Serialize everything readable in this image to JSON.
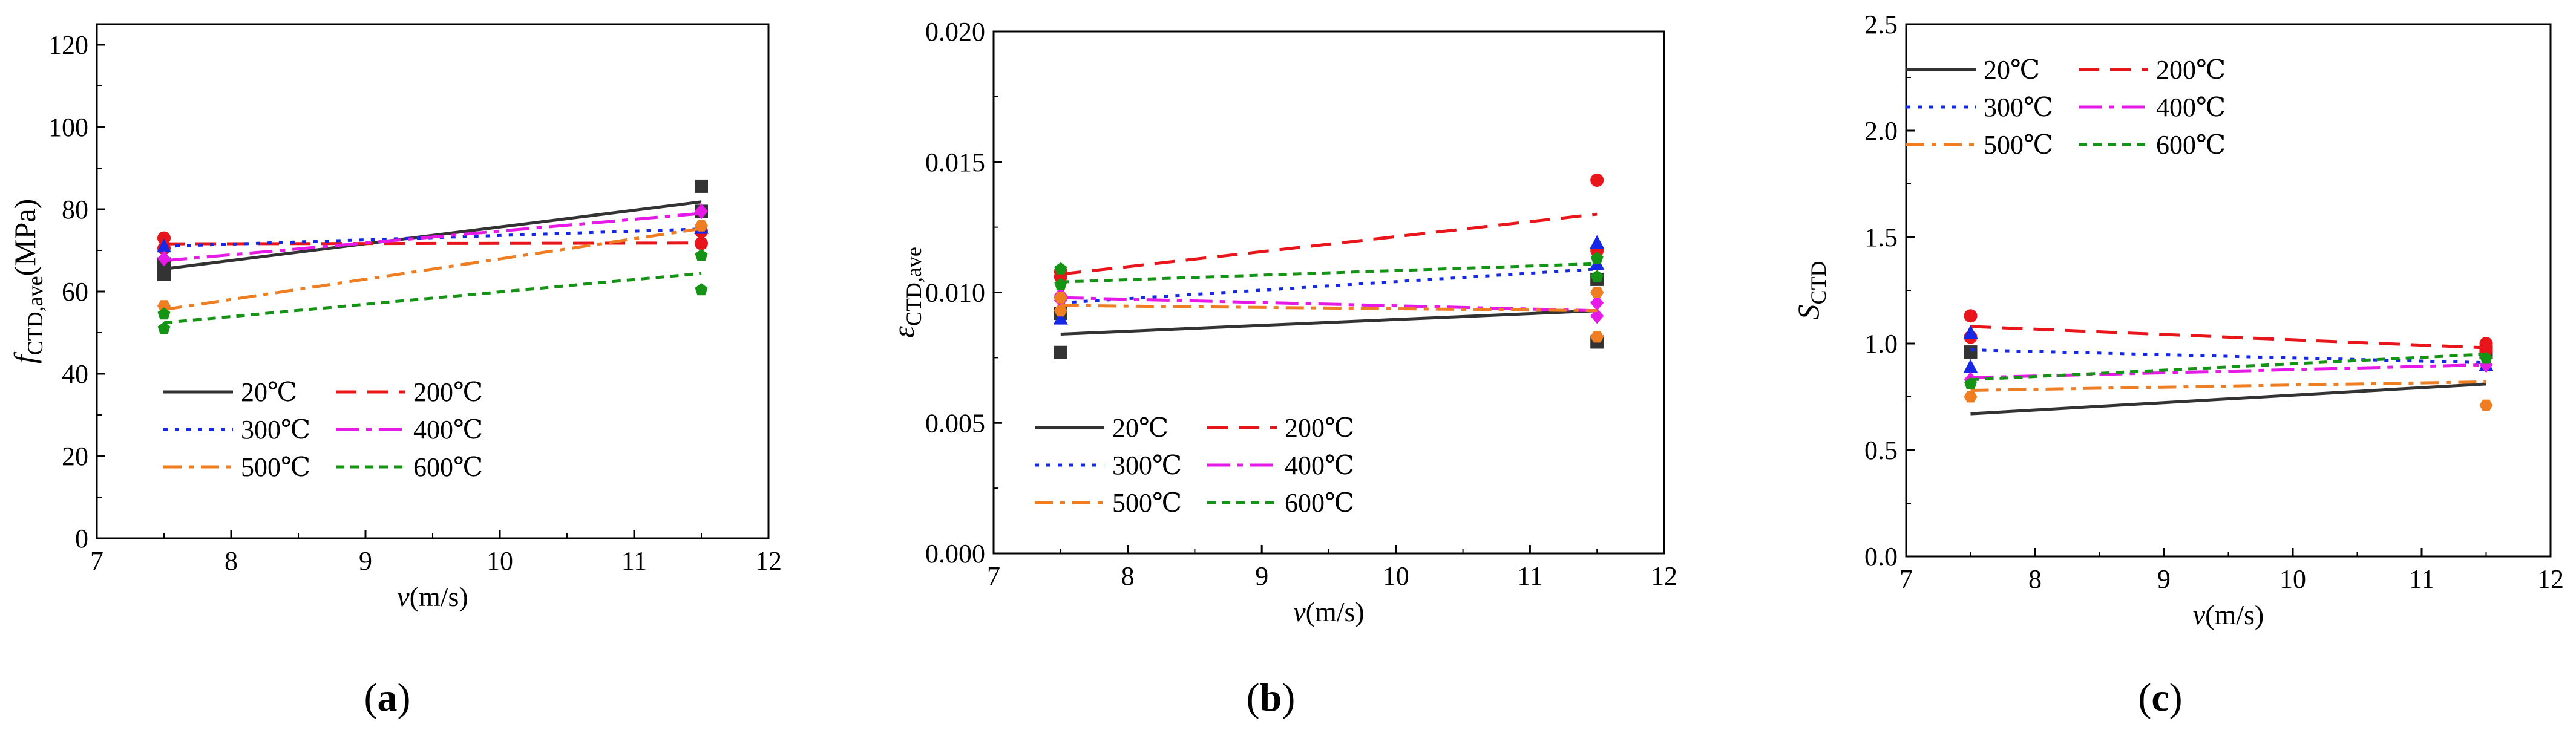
{
  "figure": {
    "panel_labels": [
      "(a)",
      "(b)",
      "(c)"
    ],
    "series_names": [
      "20℃",
      "200℃",
      "300℃",
      "400℃",
      "500℃",
      "600℃"
    ],
    "series_colors": [
      "#333333",
      "#e8151b",
      "#1428e6",
      "#e61ae6",
      "#ef7d22",
      "#159315"
    ]
  },
  "chart_data": [
    {
      "type": "line",
      "panel": "(a)",
      "title": "",
      "xlabel": "v(m/s)",
      "ylabel": "f_CTD,ave(MPa)",
      "ylabel_main": "f",
      "ylabel_sub": "CTD,ave",
      "ylabel_tail": "(MPa)",
      "xlim": [
        7,
        12
      ],
      "ylim": [
        0,
        125
      ],
      "xticks": [
        7,
        8,
        9,
        10,
        11,
        12
      ],
      "yticks": [
        0,
        20,
        40,
        60,
        80,
        100,
        120
      ],
      "ytick_labels": [
        "0",
        "20",
        "40",
        "60",
        "80",
        "100",
        "120"
      ],
      "legend": "lower-left",
      "x": [
        7.5,
        11.5
      ],
      "series": [
        {
          "name": "20℃",
          "color": "#333333",
          "dash": "",
          "marker": "square",
          "fit": [
            65.5,
            81.8
          ],
          "points": [
            [
              7.5,
              64.2
            ],
            [
              7.5,
              66.7
            ],
            [
              11.5,
              85.6
            ],
            [
              11.5,
              79.5
            ]
          ]
        },
        {
          "name": "200℃",
          "color": "#e8151b",
          "dash": "34,18",
          "marker": "circle",
          "fit": [
            71.6,
            71.8
          ],
          "points": [
            [
              7.5,
              73.0
            ],
            [
              7.5,
              70.5
            ],
            [
              11.5,
              71.7
            ],
            [
              11.5,
              74.6
            ]
          ]
        },
        {
          "name": "300℃",
          "color": "#1428e6",
          "dash": "7,12",
          "marker": "triangle",
          "fit": [
            71.0,
            75.2
          ],
          "points": [
            [
              7.5,
              71.0
            ],
            [
              11.5,
              75.5
            ]
          ]
        },
        {
          "name": "400℃",
          "color": "#e61ae6",
          "dash": "38,12,9,12",
          "marker": "diamond",
          "fit": [
            67.5,
            79.0
          ],
          "points": [
            [
              7.5,
              68.0
            ],
            [
              11.5,
              79.5
            ]
          ]
        },
        {
          "name": "500℃",
          "color": "#ef7d22",
          "dash": "30,12,8,12",
          "marker": "hexagon",
          "fit": [
            55.6,
            75.3
          ],
          "points": [
            [
              7.5,
              56.5
            ],
            [
              11.5,
              76.0
            ]
          ]
        },
        {
          "name": "600℃",
          "color": "#159315",
          "dash": "14,10",
          "marker": "pentagon",
          "fit": [
            52.4,
            64.4
          ],
          "points": [
            [
              7.5,
              54.5
            ],
            [
              7.5,
              51.0
            ],
            [
              11.5,
              68.7
            ],
            [
              11.5,
              60.4
            ]
          ]
        }
      ]
    },
    {
      "type": "line",
      "panel": "(b)",
      "title": "",
      "xlabel": "v(m/s)",
      "ylabel": "ε_CTD,ave",
      "ylabel_main": "ε",
      "ylabel_sub": "CTD,ave",
      "ylabel_tail": "",
      "xlim": [
        7,
        12
      ],
      "ylim": [
        0,
        0.02
      ],
      "xticks": [
        7,
        8,
        9,
        10,
        11,
        12
      ],
      "yticks": [
        0,
        0.005,
        0.01,
        0.015,
        0.02
      ],
      "ytick_labels": [
        "0.000",
        "0.005",
        "0.010",
        "0.015",
        "0.020"
      ],
      "legend": "lower-left",
      "x": [
        7.5,
        11.5
      ],
      "series": [
        {
          "name": "20℃",
          "color": "#333333",
          "dash": "",
          "marker": "square",
          "fit": [
            0.0084,
            0.0093
          ],
          "points": [
            [
              7.5,
              0.0077
            ],
            [
              7.5,
              0.0092
            ],
            [
              11.5,
              0.0081
            ],
            [
              11.5,
              0.0105
            ]
          ]
        },
        {
          "name": "200℃",
          "color": "#e8151b",
          "dash": "34,18",
          "marker": "circle",
          "fit": [
            0.0107,
            0.013
          ],
          "points": [
            [
              7.5,
              0.0106
            ],
            [
              7.5,
              0.0108
            ],
            [
              11.5,
              0.0143
            ],
            [
              11.5,
              0.0116
            ]
          ]
        },
        {
          "name": "300℃",
          "color": "#1428e6",
          "dash": "7,12",
          "marker": "triangle",
          "fit": [
            0.0096,
            0.0109
          ],
          "points": [
            [
              7.5,
              0.009
            ],
            [
              7.5,
              0.01
            ],
            [
              11.5,
              0.0119
            ],
            [
              11.5,
              0.0111
            ]
          ]
        },
        {
          "name": "400℃",
          "color": "#e61ae6",
          "dash": "38,12,9,12",
          "marker": "diamond",
          "fit": [
            0.0098,
            0.0093
          ],
          "points": [
            [
              7.5,
              0.0097
            ],
            [
              7.5,
              0.0099
            ],
            [
              11.5,
              0.0096
            ],
            [
              11.5,
              0.0091
            ]
          ]
        },
        {
          "name": "500℃",
          "color": "#ef7d22",
          "dash": "30,12,8,12",
          "marker": "hexagon",
          "fit": [
            0.0095,
            0.0093
          ],
          "points": [
            [
              7.5,
              0.0093
            ],
            [
              7.5,
              0.0098
            ],
            [
              11.5,
              0.01
            ],
            [
              11.5,
              0.0083
            ]
          ]
        },
        {
          "name": "600℃",
          "color": "#159315",
          "dash": "14,10",
          "marker": "pentagon",
          "fit": [
            0.0104,
            0.0111
          ],
          "points": [
            [
              7.5,
              0.0109
            ],
            [
              7.5,
              0.0103
            ],
            [
              11.5,
              0.0113
            ],
            [
              11.5,
              0.0106
            ]
          ]
        }
      ]
    },
    {
      "type": "line",
      "panel": "(c)",
      "title": "",
      "xlabel": "v(m/s)",
      "ylabel": "S_CTD",
      "ylabel_main": "S",
      "ylabel_sub": "CTD",
      "ylabel_tail": "",
      "xlim": [
        7,
        12
      ],
      "ylim": [
        0,
        2.5
      ],
      "xticks": [
        7,
        8,
        9,
        10,
        11,
        12
      ],
      "yticks": [
        0,
        0.5,
        1,
        1.5,
        2,
        2.5
      ],
      "ytick_labels": [
        "0.0",
        "0.5",
        "1.0",
        "1.5",
        "2.0",
        "2.5"
      ],
      "legend": "top-left",
      "x": [
        7.5,
        11.5
      ],
      "series": [
        {
          "name": "20℃",
          "color": "#333333",
          "dash": "",
          "marker": "square",
          "fit": [
            0.67,
            0.81
          ],
          "points": [
            [
              7.5,
              0.96
            ],
            [
              11.5,
              0.96
            ]
          ]
        },
        {
          "name": "200℃",
          "color": "#e8151b",
          "dash": "34,18",
          "marker": "circle",
          "fit": [
            1.08,
            0.98
          ],
          "points": [
            [
              7.5,
              1.13
            ],
            [
              7.5,
              1.03
            ],
            [
              11.5,
              1.0
            ],
            [
              11.5,
              0.97
            ]
          ]
        },
        {
          "name": "300℃",
          "color": "#1428e6",
          "dash": "7,12",
          "marker": "triangle",
          "fit": [
            0.97,
            0.91
          ],
          "points": [
            [
              7.5,
              1.05
            ],
            [
              7.5,
              0.89
            ],
            [
              11.5,
              0.9
            ]
          ]
        },
        {
          "name": "400℃",
          "color": "#e61ae6",
          "dash": "38,12,9,12",
          "marker": "diamond",
          "fit": [
            0.84,
            0.9
          ],
          "points": [
            [
              7.5,
              0.83
            ],
            [
              11.5,
              0.9
            ]
          ]
        },
        {
          "name": "500℃",
          "color": "#ef7d22",
          "dash": "30,12,8,12",
          "marker": "hexagon",
          "fit": [
            0.78,
            0.82
          ],
          "points": [
            [
              7.5,
              0.75
            ],
            [
              11.5,
              0.71
            ]
          ]
        },
        {
          "name": "600℃",
          "color": "#159315",
          "dash": "14,10",
          "marker": "pentagon",
          "fit": [
            0.83,
            0.95
          ],
          "points": [
            [
              7.5,
              0.81
            ],
            [
              11.5,
              0.93
            ]
          ]
        }
      ]
    }
  ]
}
